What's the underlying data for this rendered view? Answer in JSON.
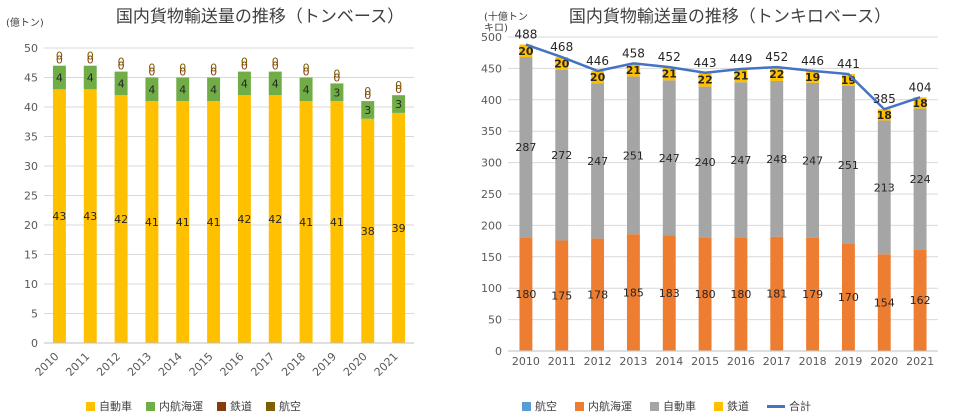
{
  "chart_data": [
    {
      "type": "bar",
      "stacked": true,
      "title": "国内貨物輸送量の推移（トンベース）",
      "unit": "(億トン)",
      "categories": [
        "2010",
        "2011",
        "2012",
        "2013",
        "2014",
        "2015",
        "2016",
        "2017",
        "2018",
        "2019",
        "2020",
        "2021"
      ],
      "ylim": [
        0,
        50
      ],
      "yticks": [
        0,
        5,
        10,
        15,
        20,
        25,
        30,
        35,
        40,
        45,
        50
      ],
      "series": [
        {
          "name": "自動車",
          "color": "#FFC000",
          "values": [
            43,
            43,
            42,
            41,
            41,
            41,
            42,
            42,
            41,
            41,
            38,
            39
          ]
        },
        {
          "name": "内航海運",
          "color": "#70AD47",
          "values": [
            4,
            4,
            4,
            4,
            4,
            4,
            4,
            4,
            4,
            3,
            3,
            3
          ]
        },
        {
          "name": "鉄道",
          "color": "#843C0C",
          "values": [
            0,
            0,
            0,
            0,
            0,
            0,
            0,
            0,
            0,
            0,
            0,
            0
          ]
        },
        {
          "name": "航空",
          "color": "#7F6000",
          "values": [
            0,
            0,
            0,
            0,
            0,
            0,
            0,
            0,
            0,
            0,
            0,
            0
          ]
        }
      ],
      "grid": true,
      "legend_position": "bottom"
    },
    {
      "type": "bar",
      "stacked": true,
      "title": "国内貨物輸送量の推移（トンキロベース）",
      "unit": "(十億トンキロ)",
      "categories": [
        "2010",
        "2011",
        "2012",
        "2013",
        "2014",
        "2015",
        "2016",
        "2017",
        "2018",
        "2019",
        "2020",
        "2021"
      ],
      "ylim": [
        0,
        500
      ],
      "yticks": [
        0,
        50,
        100,
        150,
        200,
        250,
        300,
        350,
        400,
        450,
        500
      ],
      "series": [
        {
          "name": "航空",
          "color": "#5B9BD5",
          "values": [
            1,
            1,
            1,
            1,
            1,
            1,
            1,
            1,
            1,
            1,
            0,
            0
          ]
        },
        {
          "name": "内航海運",
          "color": "#ED7D31",
          "values": [
            180,
            175,
            178,
            185,
            183,
            180,
            180,
            181,
            179,
            170,
            154,
            162
          ]
        },
        {
          "name": "自動車",
          "color": "#A5A5A5",
          "values": [
            287,
            272,
            247,
            251,
            247,
            240,
            247,
            248,
            247,
            251,
            213,
            224
          ]
        },
        {
          "name": "鉄道",
          "color": "#FFC000",
          "values": [
            20,
            20,
            20,
            21,
            21,
            22,
            21,
            22,
            19,
            19,
            18,
            18
          ]
        }
      ],
      "total": {
        "name": "合計",
        "color": "#4472C4",
        "values": [
          488,
          468,
          446,
          458,
          452,
          443,
          449,
          452,
          446,
          441,
          385,
          404
        ]
      },
      "grid": true,
      "legend_position": "bottom"
    }
  ]
}
